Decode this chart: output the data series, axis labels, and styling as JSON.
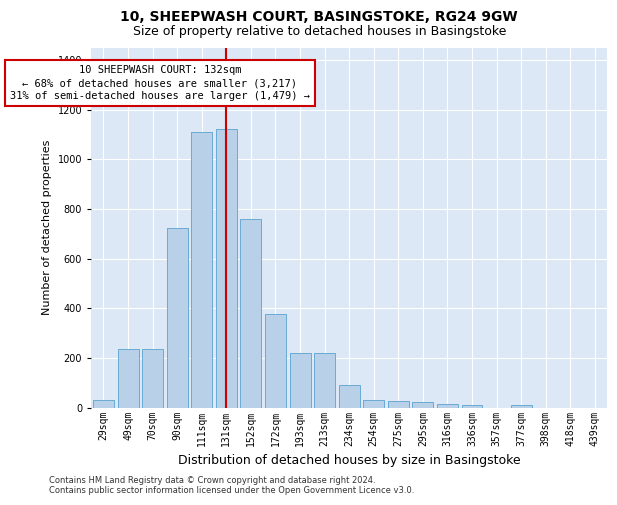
{
  "title_line1": "10, SHEEPWASH COURT, BASINGSTOKE, RG24 9GW",
  "title_line2": "Size of property relative to detached houses in Basingstoke",
  "xlabel": "Distribution of detached houses by size in Basingstoke",
  "ylabel": "Number of detached properties",
  "footnote1": "Contains HM Land Registry data © Crown copyright and database right 2024.",
  "footnote2": "Contains public sector information licensed under the Open Government Licence v3.0.",
  "bar_labels": [
    "29sqm",
    "49sqm",
    "70sqm",
    "90sqm",
    "111sqm",
    "131sqm",
    "152sqm",
    "172sqm",
    "193sqm",
    "213sqm",
    "234sqm",
    "254sqm",
    "275sqm",
    "295sqm",
    "316sqm",
    "336sqm",
    "357sqm",
    "377sqm",
    "398sqm",
    "418sqm",
    "439sqm"
  ],
  "bar_values": [
    30,
    235,
    235,
    725,
    1110,
    1120,
    760,
    375,
    220,
    220,
    90,
    30,
    27,
    22,
    15,
    10,
    0,
    10,
    0,
    0,
    0
  ],
  "bar_color": "#b8d0e8",
  "bar_edge_color": "#6aaad4",
  "property_bin_index": 5,
  "vline_color": "#cc0000",
  "annotation_text": "10 SHEEPWASH COURT: 132sqm\n← 68% of detached houses are smaller (3,217)\n31% of semi-detached houses are larger (1,479) →",
  "annotation_box_color": "#cc0000",
  "ylim": [
    0,
    1450
  ],
  "background_color": "#dce8f5",
  "grid_color": "#ffffff",
  "title_fontsize": 10,
  "subtitle_fontsize": 9,
  "ylabel_fontsize": 8,
  "xlabel_fontsize": 9,
  "tick_fontsize": 7,
  "annot_fontsize": 7.5
}
